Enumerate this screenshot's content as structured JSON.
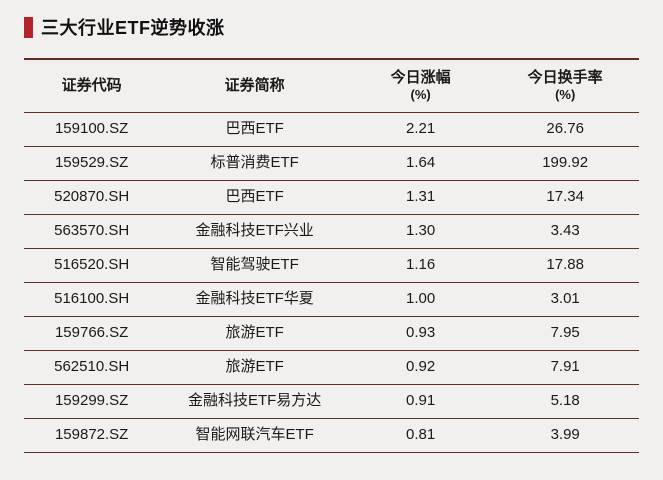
{
  "title": "三大行业ETF逆势收涨",
  "accent_color": "#b5232a",
  "line_color": "#5f2d24",
  "background_color": "#f2f0ee",
  "table": {
    "headers": {
      "code": "证券代码",
      "name": "证券简称",
      "change_line1": "今日涨幅",
      "change_line2": "(%)",
      "turnover_line1": "今日换手率",
      "turnover_line2": "(%)"
    },
    "rows": [
      {
        "code": "159100.SZ",
        "name": "巴西ETF",
        "change": "2.21",
        "turnover": "26.76"
      },
      {
        "code": "159529.SZ",
        "name": "标普消费ETF",
        "change": "1.64",
        "turnover": "199.92"
      },
      {
        "code": "520870.SH",
        "name": "巴西ETF",
        "change": "1.31",
        "turnover": "17.34"
      },
      {
        "code": "563570.SH",
        "name": "金融科技ETF兴业",
        "change": "1.30",
        "turnover": "3.43"
      },
      {
        "code": "516520.SH",
        "name": "智能驾驶ETF",
        "change": "1.16",
        "turnover": "17.88"
      },
      {
        "code": "516100.SH",
        "name": "金融科技ETF华夏",
        "change": "1.00",
        "turnover": "3.01"
      },
      {
        "code": "159766.SZ",
        "name": "旅游ETF",
        "change": "0.93",
        "turnover": "7.95"
      },
      {
        "code": "562510.SH",
        "name": "旅游ETF",
        "change": "0.92",
        "turnover": "7.91"
      },
      {
        "code": "159299.SZ",
        "name": "金融科技ETF易方达",
        "change": "0.91",
        "turnover": "5.18"
      },
      {
        "code": "159872.SZ",
        "name": "智能网联汽车ETF",
        "change": "0.81",
        "turnover": "3.99"
      }
    ]
  },
  "chart_data": {
    "type": "table",
    "title": "三大行业ETF逆势收涨",
    "columns": [
      "证券代码",
      "证券简称",
      "今日涨幅(%)",
      "今日换手率(%)"
    ],
    "rows": [
      [
        "159100.SZ",
        "巴西ETF",
        2.21,
        26.76
      ],
      [
        "159529.SZ",
        "标普消费ETF",
        1.64,
        199.92
      ],
      [
        "520870.SH",
        "巴西ETF",
        1.31,
        17.34
      ],
      [
        "563570.SH",
        "金融科技ETF兴业",
        1.3,
        3.43
      ],
      [
        "516520.SH",
        "智能驾驶ETF",
        1.16,
        17.88
      ],
      [
        "516100.SH",
        "金融科技ETF华夏",
        1.0,
        3.01
      ],
      [
        "159766.SZ",
        "旅游ETF",
        0.93,
        7.95
      ],
      [
        "562510.SH",
        "旅游ETF",
        0.92,
        7.91
      ],
      [
        "159299.SZ",
        "金融科技ETF易方达",
        0.91,
        5.18
      ],
      [
        "159872.SZ",
        "智能网联汽车ETF",
        0.81,
        3.99
      ]
    ]
  }
}
